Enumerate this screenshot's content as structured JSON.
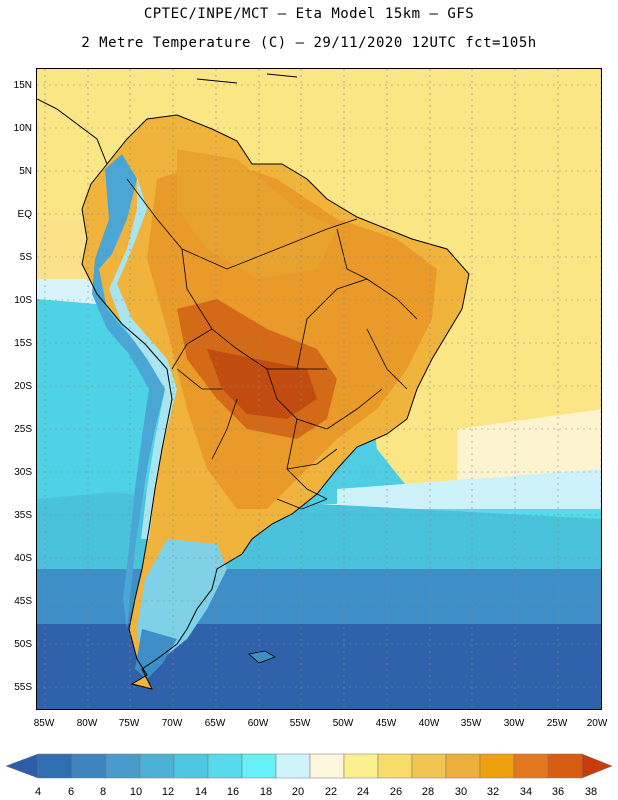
{
  "header": {
    "line1": "CPTEC/INPE/MCT –  Eta Model 15km – GFS",
    "line2": "2 Metre Temperature (C) – 29/11/2020 12UTC fct=105h"
  },
  "axes": {
    "lat_labels": [
      "15N",
      "10N",
      "5N",
      "EQ",
      "5S",
      "10S",
      "15S",
      "20S",
      "25S",
      "30S",
      "35S",
      "40S",
      "45S",
      "50S",
      "55S"
    ],
    "lon_labels": [
      "85W",
      "80W",
      "75W",
      "70W",
      "65W",
      "60W",
      "55W",
      "50W",
      "45W",
      "40W",
      "35W",
      "30W",
      "25W",
      "20W"
    ]
  },
  "colorbar": {
    "labels": [
      "4",
      "6",
      "8",
      "10",
      "12",
      "14",
      "16",
      "18",
      "20",
      "22",
      "24",
      "26",
      "28",
      "30",
      "32",
      "34",
      "36",
      "38"
    ],
    "colors": [
      "#2e5ea8",
      "#2f6fb1",
      "#3f84bf",
      "#4a9bcc",
      "#4bb2d6",
      "#4dc8e0",
      "#55dbeb",
      "#66f1f7",
      "#cff3fb",
      "#fcf7dc",
      "#fcef8e",
      "#f8dc6a",
      "#f2c450",
      "#ebb03a",
      "#eea10c",
      "#e3781f",
      "#d85d11",
      "#c63d0b"
    ]
  },
  "colors": {
    "ocean_tropical": "#f9e47d",
    "ocean_mid": "#d9f3fb",
    "ocean_cool": "#4fcde2",
    "ocean_cold": "#3e8fc8",
    "ocean_deep": "#2e5ea8",
    "land_hot": "#eea124",
    "land_very_hot": "#c95a14",
    "andes": "#3e8fc8"
  }
}
